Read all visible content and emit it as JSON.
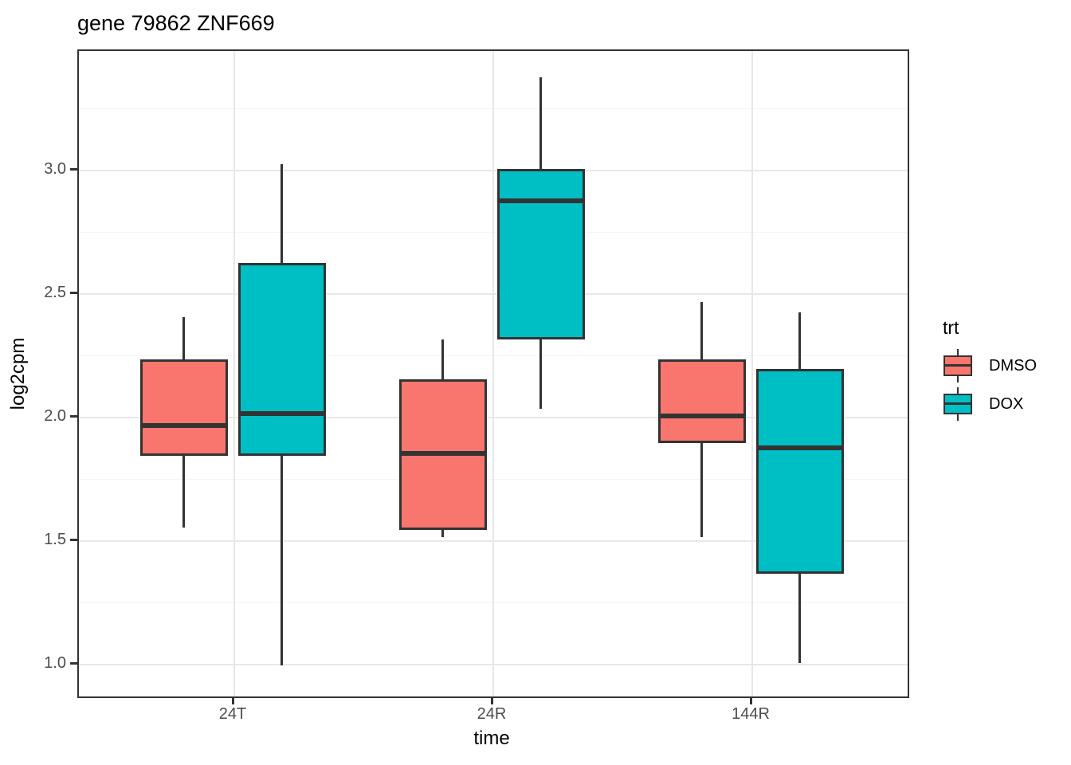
{
  "title": "gene 79862 ZNF669",
  "axes": {
    "x": {
      "label": "time",
      "categories": [
        "24T",
        "24R",
        "144R"
      ]
    },
    "y": {
      "label": "log2cpm",
      "tick_labels": [
        "1.0",
        "1.5",
        "2.0",
        "2.5",
        "3.0"
      ],
      "ticks": [
        1.0,
        1.5,
        2.0,
        2.5,
        3.0
      ],
      "minor_ticks": [
        1.25,
        1.75,
        2.25,
        2.75,
        3.25
      ],
      "ylim": [
        0.871,
        3.484
      ]
    }
  },
  "legend": {
    "title": "trt",
    "items": [
      {
        "label": "DMSO",
        "color": "#F8766D"
      },
      {
        "label": "DOX",
        "color": "#00BFC4"
      }
    ]
  },
  "colors": {
    "dmso_fill": "#F8766D",
    "dox_fill": "#00BFC4",
    "box_outline": "#333333",
    "grid_major": "#E8E8E8",
    "grid_minor": "#F4F4F4",
    "tick_text": "#4D4D4D",
    "panel_border": "#333333"
  },
  "chart_data": {
    "type": "boxplot",
    "title": "gene 79862 ZNF669",
    "xlabel": "time",
    "ylabel": "log2cpm",
    "categories": [
      "24T",
      "24R",
      "144R"
    ],
    "ylim": [
      0.871,
      3.484
    ],
    "grid": true,
    "legend_position": "right",
    "legend_title": "trt",
    "series": [
      {
        "name": "DMSO",
        "color": "#F8766D",
        "boxes": [
          {
            "category": "24T",
            "whisker_low": 1.55,
            "q1": 1.84,
            "median": 1.96,
            "q3": 2.23,
            "whisker_high": 2.4
          },
          {
            "category": "24R",
            "whisker_low": 1.51,
            "q1": 1.54,
            "median": 1.85,
            "q3": 2.15,
            "whisker_high": 2.31
          },
          {
            "category": "144R",
            "whisker_low": 1.51,
            "q1": 1.89,
            "median": 2.0,
            "q3": 2.23,
            "whisker_high": 2.46
          }
        ]
      },
      {
        "name": "DOX",
        "color": "#00BFC4",
        "boxes": [
          {
            "category": "24T",
            "whisker_low": 0.99,
            "q1": 1.84,
            "median": 2.01,
            "q3": 2.62,
            "whisker_high": 3.02
          },
          {
            "category": "24R",
            "whisker_low": 2.03,
            "q1": 2.31,
            "median": 2.87,
            "q3": 3.0,
            "whisker_high": 3.37
          },
          {
            "category": "144R",
            "whisker_low": 1.0,
            "q1": 1.36,
            "median": 1.87,
            "q3": 2.19,
            "whisker_high": 2.42
          }
        ]
      }
    ]
  }
}
